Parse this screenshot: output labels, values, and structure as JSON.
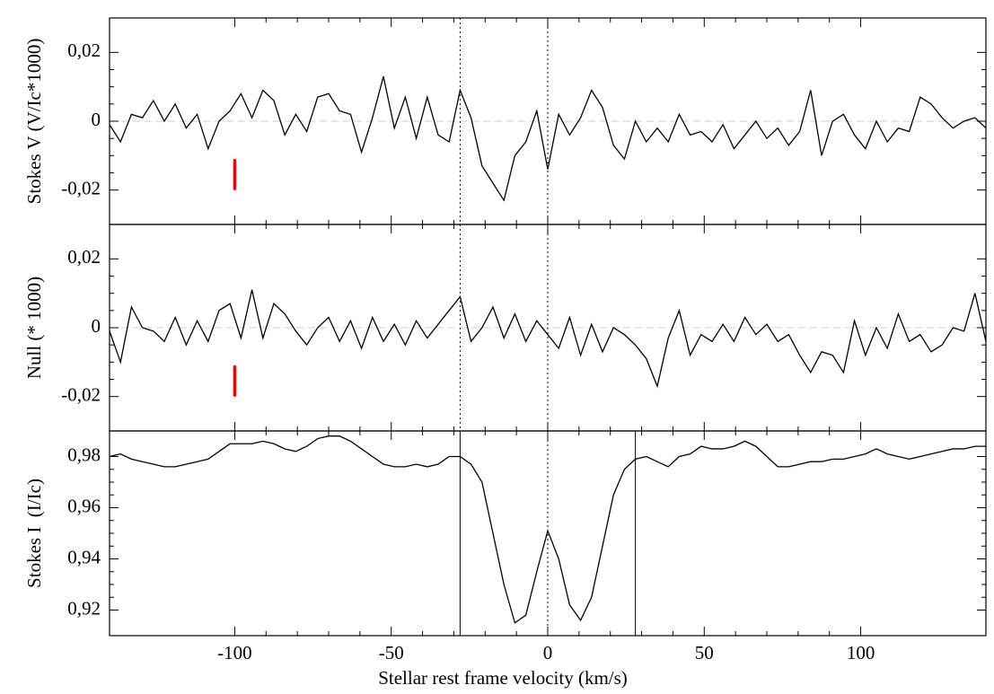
{
  "chart_data": [
    {
      "type": "line",
      "y_label": "Stokes V (V/Ic*1000)",
      "color": "#000000",
      "x": [
        -140,
        -136.5,
        -133,
        -129.5,
        -126,
        -122.5,
        -119,
        -115.5,
        -112,
        -108.5,
        -105,
        -101.5,
        -98,
        -94.5,
        -91,
        -87.5,
        -84,
        -80.5,
        -77,
        -73.5,
        -70,
        -66.5,
        -63,
        -59.5,
        -56,
        -52.5,
        -49,
        -45.5,
        -42,
        -38.5,
        -35,
        -31.5,
        -28,
        -24.5,
        -21,
        -17.5,
        -14,
        -10.5,
        -7,
        -3.5,
        0,
        3.5,
        7,
        10.5,
        14,
        17.5,
        21,
        24.5,
        28,
        31.5,
        35,
        38.5,
        42,
        45.5,
        49,
        52.5,
        56,
        59.5,
        63,
        66.5,
        70,
        73.5,
        77,
        80.5,
        84,
        87.5,
        91,
        94.5,
        98,
        101.5,
        105,
        108.5,
        112,
        115.5,
        119,
        122.5,
        126,
        129.5,
        133,
        136.5,
        140
      ],
      "values": [
        -0.001,
        -0.006,
        0.002,
        0.001,
        0.006,
        0,
        0.005,
        -0.002,
        0.002,
        -0.008,
        0,
        0.003,
        0.008,
        0.001,
        0.009,
        0.006,
        -0.004,
        0.002,
        -0.003,
        0.007,
        0.008,
        0.003,
        0.002,
        -0.009,
        0.001,
        0.013,
        -0.002,
        0.007,
        -0.005,
        0.007,
        -0.004,
        -0.006,
        0.009,
        0.001,
        -0.013,
        -0.018,
        -0.023,
        -0.01,
        -0.006,
        0.003,
        -0.014,
        0.002,
        -0.004,
        0.001,
        0.009,
        0.004,
        -0.007,
        -0.011,
        0,
        -0.006,
        -0.002,
        -0.006,
        0.002,
        -0.004,
        -0.003,
        -0.006,
        -0.001,
        -0.008,
        -0.004,
        0,
        -0.005,
        -0.002,
        -0.007,
        -0.003,
        0.009,
        -0.01,
        0,
        0.002,
        -0.004,
        -0.008,
        0,
        -0.006,
        -0.002,
        -0.003,
        0.007,
        0.005,
        0.001,
        -0.002,
        0,
        0.001,
        -0.002
      ],
      "xlim": [
        -140,
        140
      ],
      "ylim": [
        -0.03,
        0.03
      ],
      "yticks": [
        {
          "value": -0.02,
          "label": "-0,02"
        },
        0,
        {
          "value": 0.02,
          "label": "0,02"
        }
      ],
      "hline": {
        "y": 0,
        "color": "#cccccc",
        "style": "dashed"
      },
      "vlines": [
        {
          "x": -28,
          "style": "dotted"
        },
        {
          "x": 0,
          "style": "dotted"
        }
      ],
      "markers": [
        {
          "x": -100,
          "y": [
            -0.011,
            -0.02
          ],
          "color": "#ff0000"
        }
      ]
    },
    {
      "type": "line",
      "y_label": "Null (* 1000)",
      "color": "#000000",
      "x": [
        -140,
        -136.5,
        -133,
        -129.5,
        -126,
        -122.5,
        -119,
        -115.5,
        -112,
        -108.5,
        -105,
        -101.5,
        -98,
        -94.5,
        -91,
        -87.5,
        -84,
        -80.5,
        -77,
        -73.5,
        -70,
        -66.5,
        -63,
        -59.5,
        -56,
        -52.5,
        -49,
        -45.5,
        -42,
        -38.5,
        -35,
        -31.5,
        -28,
        -24.5,
        -21,
        -17.5,
        -14,
        -10.5,
        -7,
        -3.5,
        0,
        3.5,
        7,
        10.5,
        14,
        17.5,
        21,
        24.5,
        28,
        31.5,
        35,
        38.5,
        42,
        45.5,
        49,
        52.5,
        56,
        59.5,
        63,
        66.5,
        70,
        73.5,
        77,
        80.5,
        84,
        87.5,
        91,
        94.5,
        98,
        101.5,
        105,
        108.5,
        112,
        115.5,
        119,
        122.5,
        126,
        129.5,
        133,
        136.5,
        140
      ],
      "values": [
        -0.001,
        -0.01,
        0.006,
        0,
        -0.001,
        -0.004,
        0.003,
        -0.005,
        0.002,
        -0.004,
        0.005,
        0.007,
        -0.003,
        0.011,
        -0.003,
        0.007,
        0.004,
        -0.001,
        -0.005,
        0,
        0.003,
        -0.004,
        0.002,
        -0.006,
        0.003,
        -0.004,
        0.001,
        -0.005,
        0.002,
        -0.003,
        0.001,
        0.005,
        0.009,
        -0.004,
        0,
        0.006,
        -0.003,
        0.004,
        -0.004,
        0.002,
        -0.002,
        -0.006,
        0.003,
        -0.008,
        0.001,
        -0.007,
        0,
        -0.002,
        -0.005,
        -0.009,
        -0.017,
        -0.003,
        0.005,
        -0.008,
        -0.002,
        -0.004,
        0.001,
        -0.004,
        0.003,
        -0.002,
        0.001,
        -0.004,
        -0.002,
        -0.008,
        -0.013,
        -0.007,
        -0.008,
        -0.013,
        0.002,
        -0.008,
        0,
        -0.006,
        0.004,
        -0.004,
        -0.002,
        -0.007,
        -0.005,
        0,
        -0.001,
        0.01,
        -0.004
      ],
      "xlim": [
        -140,
        140
      ],
      "ylim": [
        -0.03,
        0.03
      ],
      "yticks": [
        {
          "value": -0.02,
          "label": "-0,02"
        },
        0,
        {
          "value": 0.02,
          "label": "0,02"
        }
      ],
      "hline": {
        "y": 0,
        "color": "#cccccc",
        "style": "dashed"
      },
      "vlines": [
        {
          "x": -28,
          "style": "dotted"
        },
        {
          "x": 0,
          "style": "dotted"
        }
      ],
      "markers": [
        {
          "x": -100,
          "y": [
            -0.011,
            -0.02
          ],
          "color": "#ff0000"
        }
      ]
    },
    {
      "type": "line",
      "y_label": "Stokes I  (I/Ic)",
      "x_label": "Stellar rest frame velocity (km/s)",
      "color": "#000000",
      "x": [
        -140,
        -136.5,
        -133,
        -129.5,
        -126,
        -122.5,
        -119,
        -115.5,
        -112,
        -108.5,
        -105,
        -101.5,
        -98,
        -94.5,
        -91,
        -87.5,
        -84,
        -80.5,
        -77,
        -73.5,
        -70,
        -66.5,
        -63,
        -59.5,
        -56,
        -52.5,
        -49,
        -45.5,
        -42,
        -38.5,
        -35,
        -31.5,
        -28,
        -24.5,
        -21,
        -17.5,
        -14,
        -10.5,
        -7,
        -3.5,
        0,
        3.5,
        7,
        10.5,
        14,
        17.5,
        21,
        24.5,
        28,
        31.5,
        35,
        38.5,
        42,
        45.5,
        49,
        52.5,
        56,
        59.5,
        63,
        66.5,
        70,
        73.5,
        77,
        80.5,
        84,
        87.5,
        91,
        94.5,
        98,
        101.5,
        105,
        108.5,
        112,
        115.5,
        119,
        122.5,
        126,
        129.5,
        133,
        136.5,
        140
      ],
      "values": [
        0.98,
        0.981,
        0.979,
        0.978,
        0.977,
        0.976,
        0.976,
        0.977,
        0.978,
        0.979,
        0.982,
        0.985,
        0.985,
        0.985,
        0.986,
        0.985,
        0.983,
        0.982,
        0.984,
        0.987,
        0.988,
        0.988,
        0.986,
        0.983,
        0.98,
        0.977,
        0.976,
        0.976,
        0.977,
        0.976,
        0.977,
        0.98,
        0.98,
        0.977,
        0.97,
        0.95,
        0.93,
        0.915,
        0.918,
        0.935,
        0.951,
        0.94,
        0.922,
        0.916,
        0.925,
        0.945,
        0.965,
        0.975,
        0.979,
        0.98,
        0.978,
        0.976,
        0.98,
        0.981,
        0.984,
        0.983,
        0.983,
        0.984,
        0.986,
        0.984,
        0.98,
        0.976,
        0.976,
        0.977,
        0.978,
        0.978,
        0.979,
        0.979,
        0.98,
        0.981,
        0.983,
        0.981,
        0.98,
        0.979,
        0.98,
        0.981,
        0.982,
        0.983,
        0.983,
        0.984,
        0.984
      ],
      "xlim": [
        -140,
        140
      ],
      "ylim": [
        0.91,
        0.99
      ],
      "xticks": [
        -100,
        -50,
        0,
        50,
        100
      ],
      "yticks": [
        {
          "value": 0.92,
          "label": "0,92"
        },
        {
          "value": 0.94,
          "label": "0,94"
        },
        {
          "value": 0.96,
          "label": "0,96"
        },
        {
          "value": 0.98,
          "label": "0,98"
        }
      ],
      "vlines": [
        {
          "x": -28,
          "style": "solid"
        },
        {
          "x": 0,
          "style": "dotted"
        },
        {
          "x": 28,
          "style": "solid"
        }
      ]
    }
  ]
}
